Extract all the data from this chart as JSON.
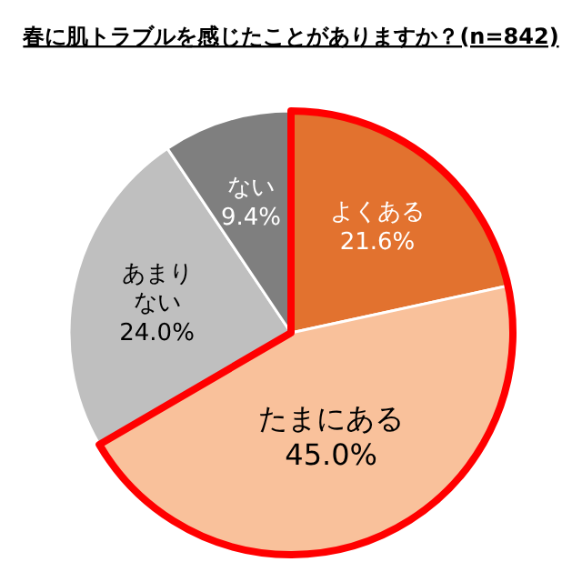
{
  "chart_data": {
    "type": "pie",
    "title": "春に肌トラブルを感じたことがありますか？(n=842)",
    "categories": [
      "よくある",
      "たまにある",
      "あまりない",
      "ない"
    ],
    "values": [
      21.6,
      45.0,
      24.0,
      9.4
    ],
    "colors": [
      "#e2722f",
      "#f9c19b",
      "#bfbfbf",
      "#7f7f7f"
    ],
    "value_labels": [
      "21.6%",
      "45.0%",
      "24.0%",
      "9.4%"
    ]
  }
}
